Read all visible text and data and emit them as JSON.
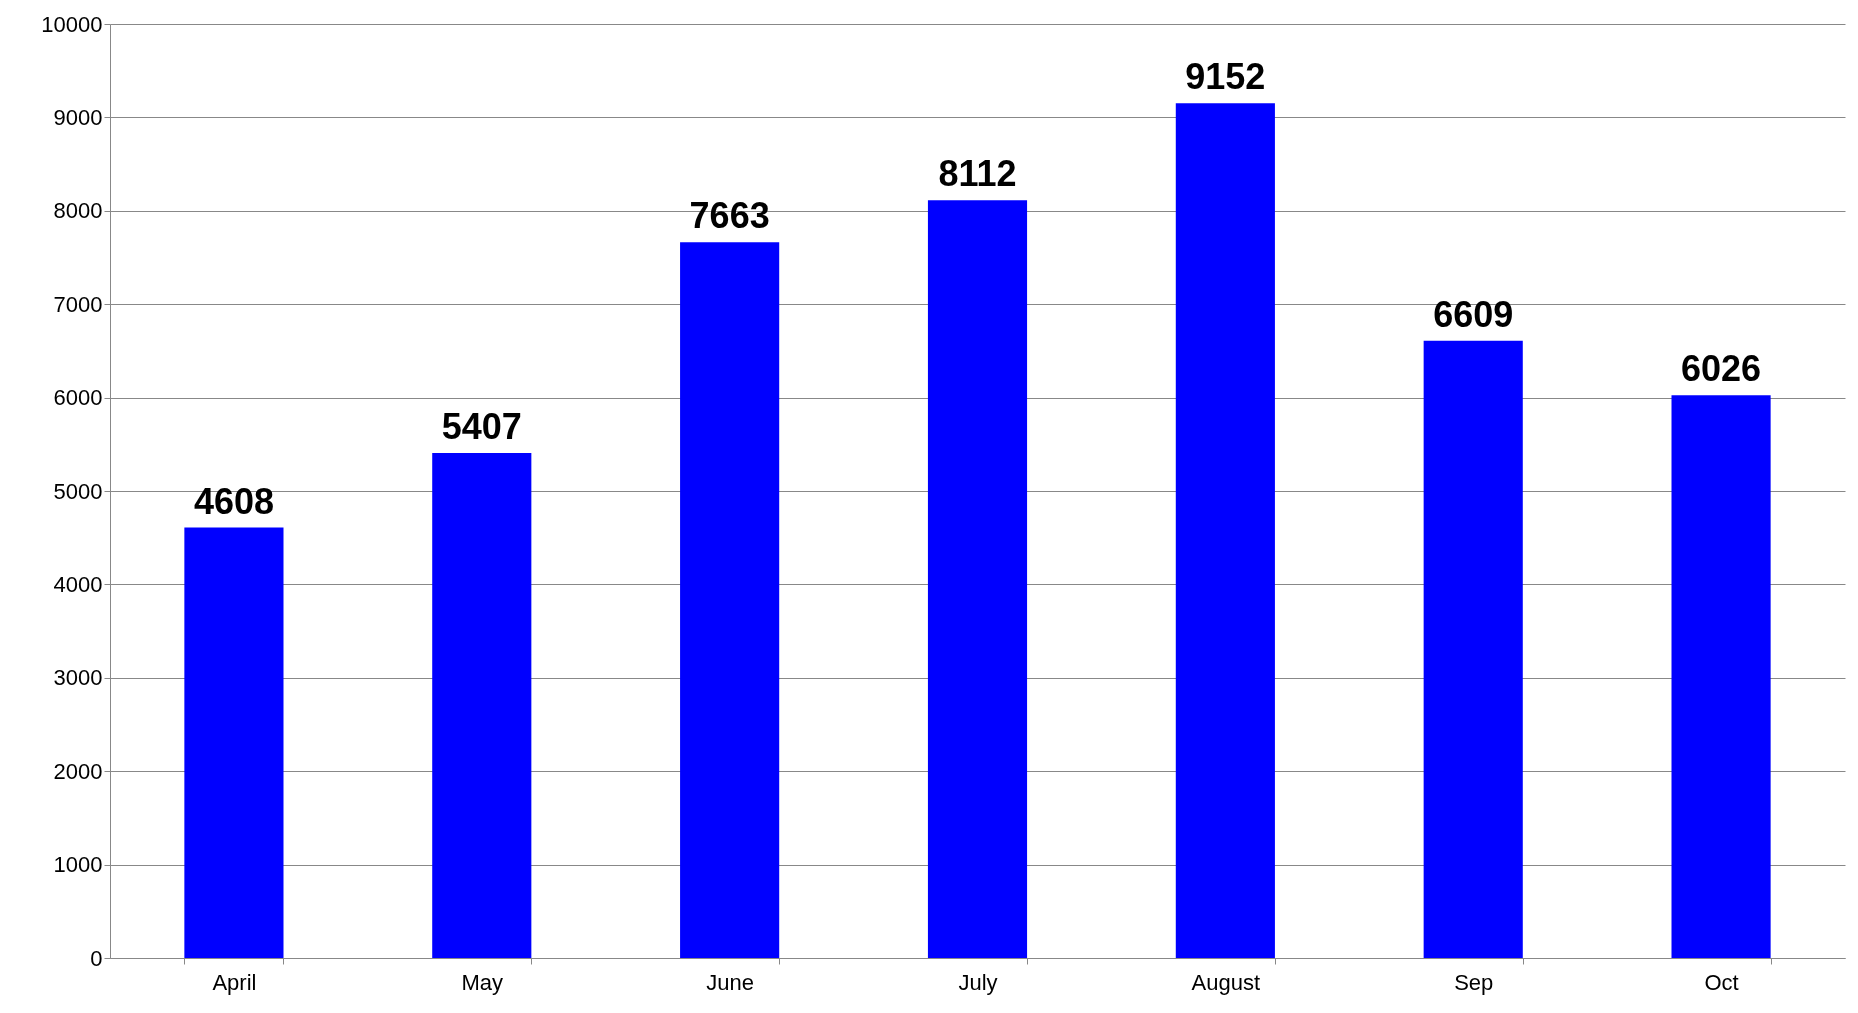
{
  "chart_data": {
    "type": "bar",
    "categories": [
      "April",
      "May",
      "June",
      "July",
      "August",
      "Sep",
      "Oct"
    ],
    "values": [
      4608,
      5407,
      7663,
      8112,
      9152,
      6609,
      6026
    ],
    "color": "#0000ff",
    "ylim": [
      0,
      10000
    ],
    "yticks": [
      0,
      1000,
      2000,
      3000,
      4000,
      5000,
      6000,
      7000,
      8000,
      9000,
      10000
    ],
    "grid": "y",
    "data_labels": true
  }
}
